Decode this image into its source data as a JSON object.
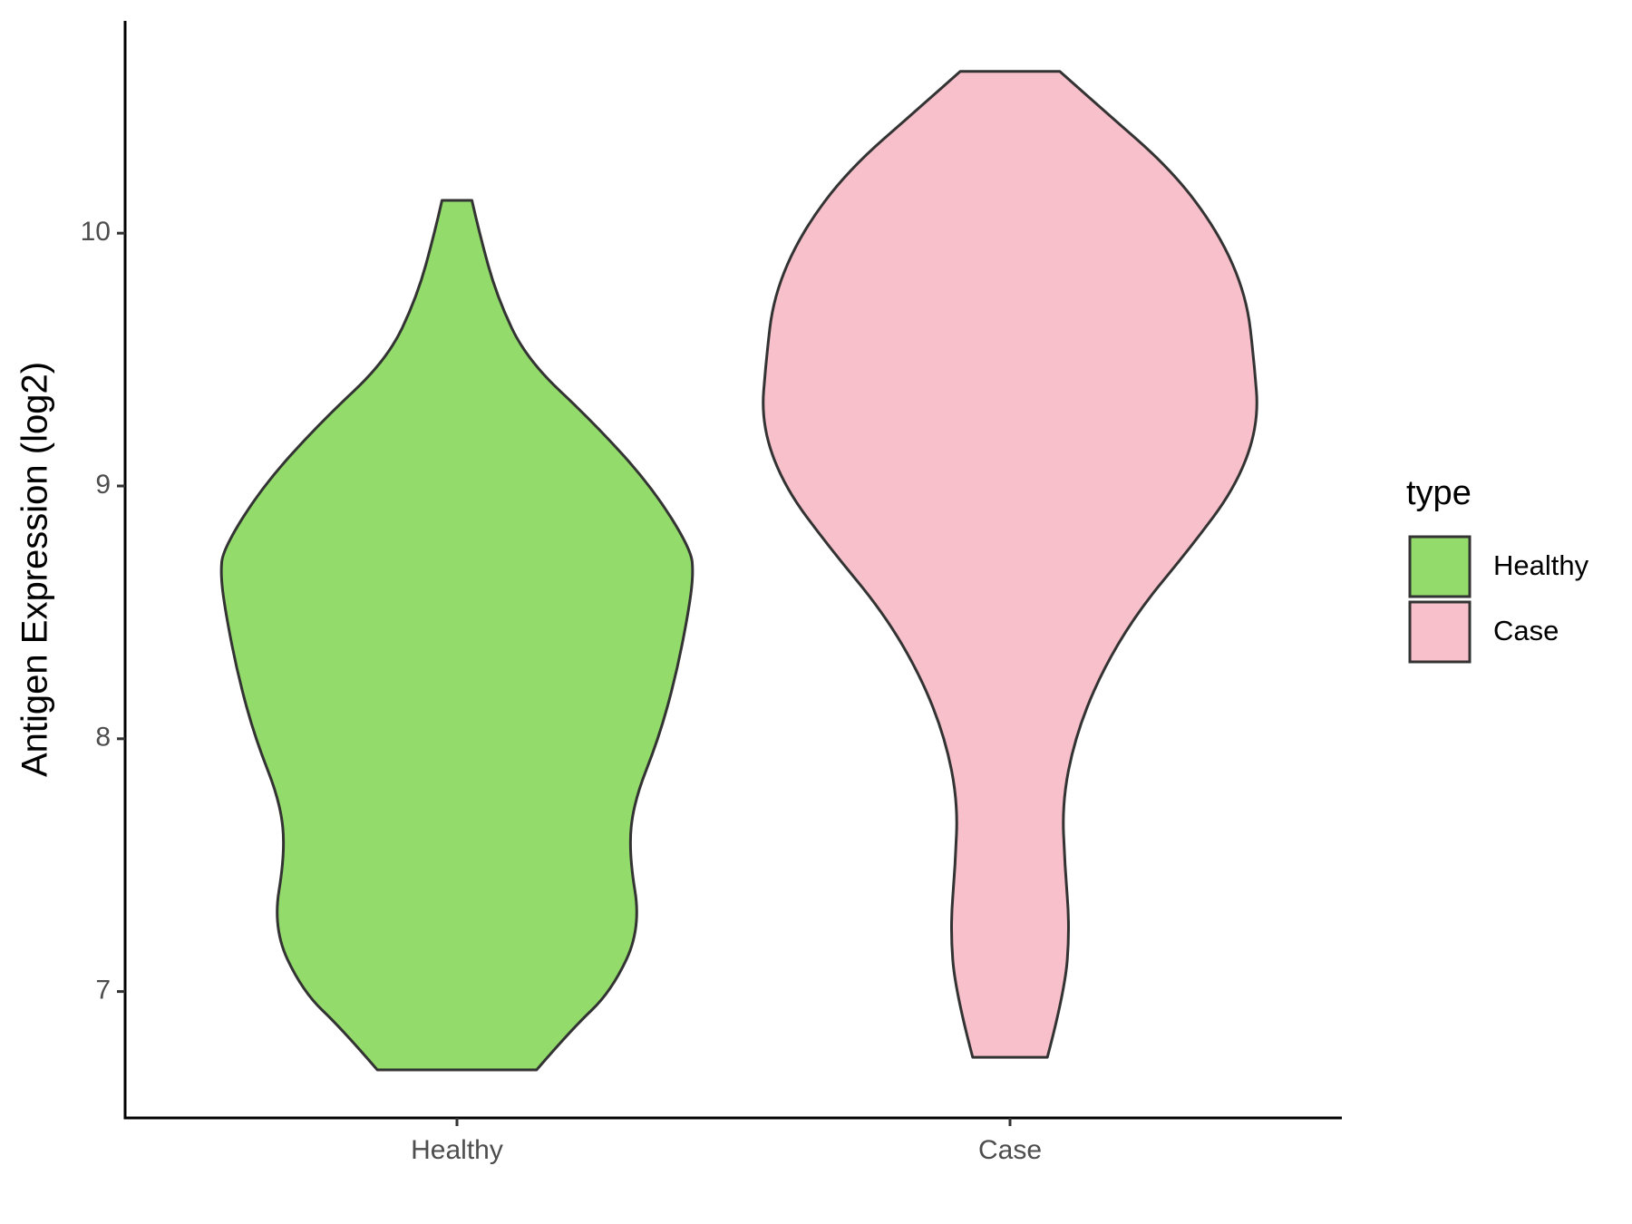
{
  "chart_data": {
    "type": "violin",
    "y_label": "Antigen Expression (log2)",
    "legend_title": "type",
    "categories": [
      "Healthy",
      "Case"
    ],
    "ylim": [
      6.5,
      10.84
    ],
    "yticks": [
      7,
      8,
      9,
      10
    ],
    "legend_position": "right",
    "series": [
      {
        "name": "Healthy",
        "color": "#93dc6b",
        "y": [
          10.13,
          10.0,
          9.75,
          9.5,
          9.25,
          9.0,
          8.75,
          8.65,
          8.5,
          8.25,
          8.0,
          7.75,
          7.55,
          7.25,
          7.0,
          6.85,
          6.69
        ],
        "density": [
          0.06,
          0.09,
          0.16,
          0.28,
          0.55,
          0.78,
          0.94,
          0.95,
          0.93,
          0.88,
          0.81,
          0.71,
          0.69,
          0.74,
          0.62,
          0.46,
          0.32
        ]
      },
      {
        "name": "Case",
        "color": "#f8c0ca",
        "y": [
          10.64,
          10.5,
          10.25,
          10.0,
          9.75,
          9.5,
          9.25,
          9.0,
          8.75,
          8.5,
          8.25,
          8.0,
          7.75,
          7.5,
          7.25,
          7.0,
          6.74
        ],
        "density": [
          0.2,
          0.36,
          0.65,
          0.84,
          0.95,
          0.98,
          1.0,
          0.91,
          0.72,
          0.51,
          0.36,
          0.26,
          0.21,
          0.22,
          0.24,
          0.22,
          0.15
        ]
      }
    ]
  }
}
